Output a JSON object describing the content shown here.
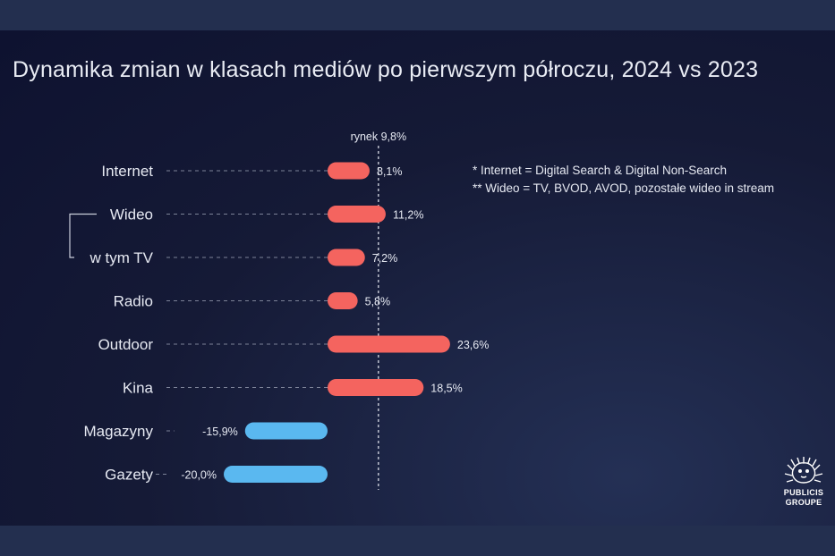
{
  "title": "Dynamika zmian w klasach mediów po pierwszym półroczu, 2024 vs 2023",
  "notes": [
    "* Internet = Digital Search & Digital Non-Search",
    "** Wideo = TV, BVOD, AVOD, pozostałe wideo in stream"
  ],
  "logo": {
    "line1": "PUBLICIS",
    "line2": "GROUPE",
    "icon": "publicis-lion-icon"
  },
  "chart_data": {
    "type": "bar",
    "orientation": "horizontal",
    "categories": [
      "Internet",
      "Wideo",
      "w tym TV",
      "Radio",
      "Outdoor",
      "Kina",
      "Magazyny",
      "Gazety"
    ],
    "values": [
      8.1,
      11.2,
      7.2,
      5.8,
      23.6,
      18.5,
      -15.9,
      -20.0
    ],
    "value_labels": [
      "8,1%",
      "11,2%",
      "7,2%",
      "5,8%",
      "23,6%",
      "18,5%",
      "-15,9%",
      "-20,0%"
    ],
    "reference_line": {
      "label": "rynek 9,8%",
      "value": 9.8
    },
    "colors": {
      "positive": "#f4645f",
      "negative": "#5ab8f0",
      "text": "#e6e9f2",
      "guide": "#7d8398"
    },
    "grid": false,
    "legend": "none"
  }
}
